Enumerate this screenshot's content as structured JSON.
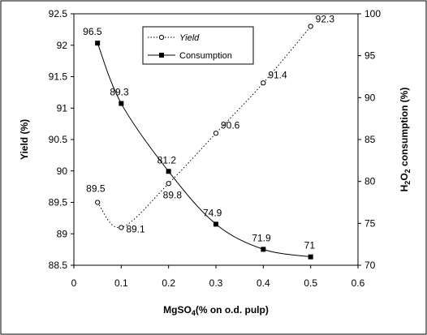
{
  "chart_data": {
    "type": "line",
    "title": "",
    "xlabel": "MgSO4(% on o.d. pulp)",
    "xlabel_parts": {
      "base": "MgSO",
      "sub": "4",
      "rest": "(% on o.d. pulp)"
    },
    "ylabel_left": "Yield (%)",
    "ylabel_right": "H2O2 consumption (%)",
    "ylabel_right_parts": {
      "a": "H",
      "sub1": "2",
      "b": "O",
      "sub2": "2",
      "rest": " consumption (%)"
    },
    "xlim": [
      0,
      0.6
    ],
    "x_ticks": [
      "0",
      "0.1",
      "0.2",
      "0.3",
      "0.4",
      "0.5",
      "0.6"
    ],
    "y_left_lim": [
      88.5,
      92.5
    ],
    "y_left_ticks": [
      "88.5",
      "89",
      "89.5",
      "90",
      "90.5",
      "91",
      "91.5",
      "92",
      "92.5"
    ],
    "y_right_lim": [
      70,
      100
    ],
    "y_right_ticks": [
      "70",
      "75",
      "80",
      "85",
      "90",
      "95",
      "100"
    ],
    "grid": false,
    "legend_position": "top-right",
    "series": [
      {
        "name": "Yield",
        "axis": "left",
        "style": "dotted",
        "marker": "open-circle",
        "x": [
          0.05,
          0.1,
          0.2,
          0.3,
          0.4,
          0.5
        ],
        "y": [
          89.5,
          89.1,
          89.8,
          90.6,
          91.4,
          92.3
        ],
        "labels": [
          "89.5",
          "89.1",
          "89.8",
          "90.6",
          "91.4",
          "92.3"
        ]
      },
      {
        "name": "Consumption",
        "axis": "right",
        "style": "solid",
        "marker": "filled-square",
        "x": [
          0.05,
          0.1,
          0.2,
          0.3,
          0.4,
          0.5
        ],
        "y": [
          96.5,
          89.3,
          81.2,
          74.9,
          71.9,
          71
        ],
        "labels": [
          "96.5",
          "89.3",
          "81.2",
          "74.9",
          "71.9",
          "71"
        ]
      }
    ]
  }
}
